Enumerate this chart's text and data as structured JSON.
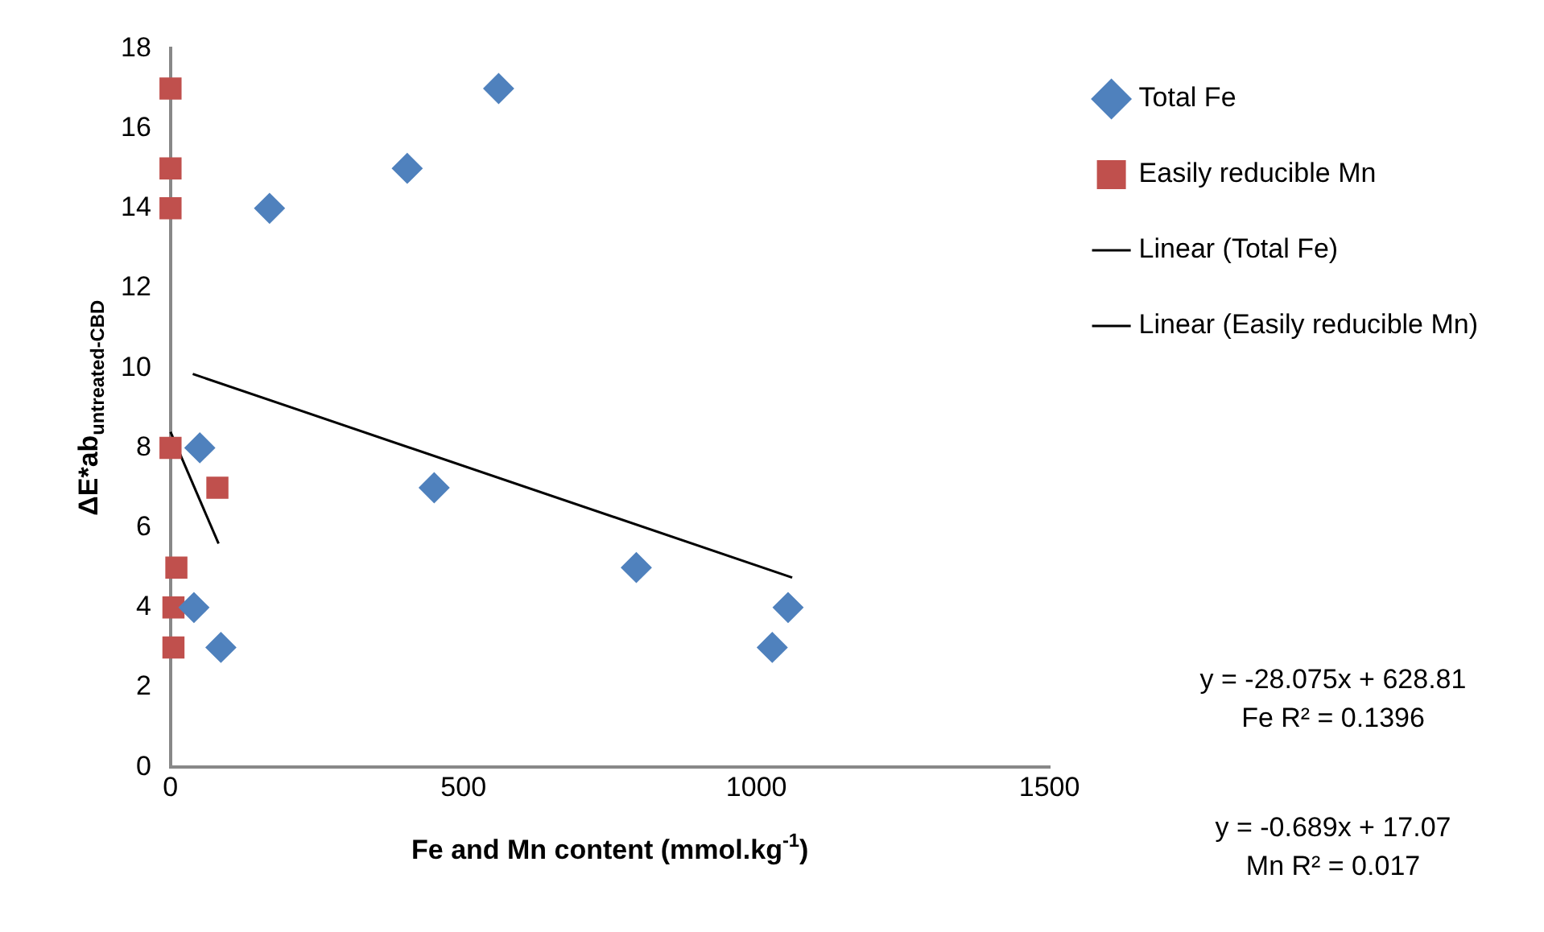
{
  "chart_data": {
    "type": "scatter",
    "xlabel": "Fe and Mn content (mmol.kg$^{-1}$)",
    "ylabel": "ΔE*ab$_{untreated-CBD}$",
    "series": [
      {
        "name": "Total Fe",
        "color": "#4f81bd",
        "marker": "diamond",
        "x": [
          560,
          404,
          169,
          50,
          450,
          795,
          1054,
          1027,
          40,
          86
        ],
        "values": [
          17,
          15,
          14,
          8,
          7,
          5,
          4,
          3,
          4,
          3
        ]
      },
      {
        "name": "Easily reducible Mn",
        "color": "#c0504d",
        "marker": "square",
        "x": [
          0,
          0,
          0,
          0,
          80,
          10,
          5,
          5
        ],
        "values": [
          17,
          15,
          14,
          8,
          7,
          5,
          4,
          3
        ]
      },
      {
        "name": "Linear (Total Fe)",
        "type": "line",
        "color": "#000000",
        "marker": "none",
        "x": [
          38,
          1061
        ],
        "values": [
          9.85,
          4.75
        ]
      },
      {
        "name": "Linear (Easily reducible Mn)",
        "type": "line",
        "color": "#000000",
        "marker": "none",
        "x": [
          0,
          82
        ],
        "values": [
          8.4,
          5.6
        ]
      }
    ],
    "xlim": [
      0,
      1500
    ],
    "xticks": [
      0,
      500,
      1000,
      1500
    ],
    "ylim": [
      0,
      18
    ],
    "yticks": [
      0,
      2,
      4,
      6,
      8,
      10,
      12,
      14,
      16,
      18
    ],
    "grid": false,
    "legend": "right",
    "annotations": [
      "y = -28.075x + 628.81\nFe R² = 0.1396",
      "y = -0.689x + 17.07\nMn R² = 0.017"
    ]
  }
}
